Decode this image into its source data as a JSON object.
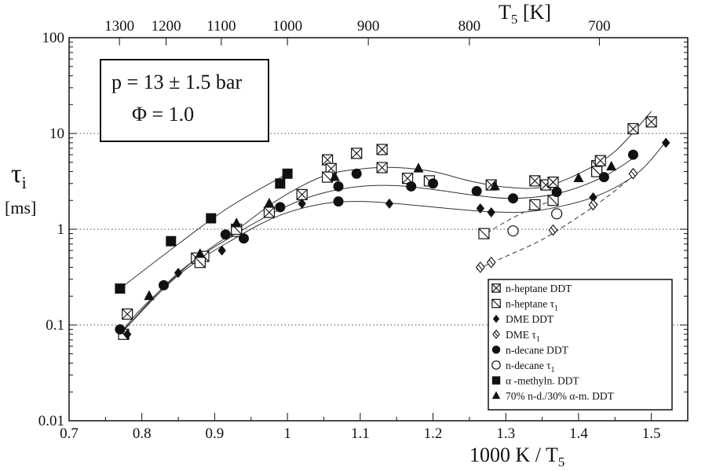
{
  "chart_data": {
    "type": "scatter",
    "xlabel": "1000 K / T",
    "xlabel_sub": "5",
    "ylabel": "τ",
    "ylabel_sub": "i",
    "ylabel_unit": "[ms]",
    "top_label": "T",
    "top_label_sub": "5",
    "top_label_unit": " [K]",
    "xlim": [
      0.7,
      1.55
    ],
    "ylim": [
      0.01,
      100
    ],
    "yscale": "log",
    "grid": "horizontal dotted at decades",
    "legend_position": "bottom-right",
    "x_ticks": [
      "0.7",
      "0.8",
      "0.9",
      "1",
      "1.1",
      "1.2",
      "1.3",
      "1.4",
      "1.5"
    ],
    "y_ticks": [
      "0.01",
      "0.1",
      "1",
      "10",
      "100"
    ],
    "top_ticks": [
      "1300",
      "1200",
      "1100",
      "1000",
      "900",
      "800",
      "700"
    ],
    "top_tick_values_K": [
      1300,
      1200,
      1100,
      1000,
      900,
      800,
      700
    ],
    "conditions": [
      "p = 13 ± 1.5 bar",
      "Φ  = 1.0"
    ],
    "series": [
      {
        "name": "n-heptane  DDT",
        "marker": "square-x",
        "points": [
          [
            0.78,
            0.13
          ],
          [
            0.875,
            0.5
          ],
          [
            0.885,
            0.52
          ],
          [
            0.93,
            0.95
          ],
          [
            0.975,
            1.5
          ],
          [
            1.02,
            2.3
          ],
          [
            1.055,
            5.3
          ],
          [
            1.06,
            4.3
          ],
          [
            1.095,
            6.2
          ],
          [
            1.13,
            6.8
          ],
          [
            1.13,
            4.4
          ],
          [
            1.165,
            3.4
          ],
          [
            1.28,
            2.9
          ],
          [
            1.34,
            3.2
          ],
          [
            1.355,
            2.9
          ],
          [
            1.365,
            3.1
          ],
          [
            1.425,
            4.6
          ],
          [
            1.43,
            5.2
          ],
          [
            1.475,
            11.2
          ],
          [
            1.5,
            13.2
          ]
        ]
      },
      {
        "name": "n-heptane  τ",
        "name_sub": "1",
        "marker": "square-slash",
        "points": [
          [
            0.775,
            0.08
          ],
          [
            0.88,
            0.45
          ],
          [
            0.93,
            1.0
          ],
          [
            1.055,
            3.5
          ],
          [
            1.195,
            3.2
          ],
          [
            1.27,
            0.9
          ],
          [
            1.34,
            1.8
          ],
          [
            1.365,
            2.0
          ],
          [
            1.425,
            4.0
          ]
        ]
      },
      {
        "name": "DME         DDT",
        "marker": "diamond-filled",
        "points": [
          [
            0.78,
            0.08
          ],
          [
            0.85,
            0.35
          ],
          [
            0.91,
            0.6
          ],
          [
            1.02,
            1.85
          ],
          [
            1.14,
            1.85
          ],
          [
            1.265,
            1.65
          ],
          [
            1.28,
            1.5
          ],
          [
            1.42,
            2.15
          ],
          [
            1.52,
            8.0
          ]
        ]
      },
      {
        "name": "DME         τ",
        "name_sub": "1",
        "marker": "diamond-slash",
        "points": [
          [
            1.265,
            0.4
          ],
          [
            1.28,
            0.45
          ],
          [
            1.365,
            0.98
          ],
          [
            1.42,
            1.8
          ],
          [
            1.475,
            3.8
          ]
        ]
      },
      {
        "name": "n-decane   DDT",
        "marker": "circle-filled",
        "points": [
          [
            0.77,
            0.09
          ],
          [
            0.83,
            0.26
          ],
          [
            0.915,
            0.88
          ],
          [
            0.94,
            0.8
          ],
          [
            0.99,
            1.7
          ],
          [
            1.07,
            1.95
          ],
          [
            1.07,
            2.8
          ],
          [
            1.095,
            3.8
          ],
          [
            1.17,
            2.8
          ],
          [
            1.2,
            3.0
          ],
          [
            1.26,
            2.5
          ],
          [
            1.31,
            2.1
          ],
          [
            1.37,
            2.45
          ],
          [
            1.435,
            3.5
          ],
          [
            1.475,
            6.0
          ]
        ]
      },
      {
        "name": "n-decane   τ",
        "name_sub": "1",
        "marker": "circle-open",
        "points": [
          [
            1.31,
            0.96
          ],
          [
            1.37,
            1.45
          ]
        ]
      },
      {
        "name": "α -methyln. DDT",
        "marker": "square-filled",
        "points": [
          [
            0.77,
            0.24
          ],
          [
            0.84,
            0.75
          ],
          [
            0.895,
            1.3
          ],
          [
            0.99,
            3.0
          ],
          [
            1.0,
            3.8
          ]
        ]
      },
      {
        "name": "70% n-d./30% α-m. DDT",
        "marker": "triangle-filled",
        "points": [
          [
            0.81,
            0.2
          ],
          [
            0.81,
            0.2
          ],
          [
            0.88,
            0.55
          ],
          [
            0.93,
            1.15
          ],
          [
            0.975,
            1.85
          ],
          [
            1.065,
            3.5
          ],
          [
            1.18,
            4.3
          ],
          [
            1.285,
            2.8
          ],
          [
            1.4,
            3.4
          ],
          [
            1.445,
            4.5
          ]
        ]
      }
    ],
    "fit_curves": [
      {
        "style": "solid",
        "points": [
          [
            0.77,
            0.24
          ],
          [
            0.85,
            0.7
          ],
          [
            0.92,
            1.7
          ],
          [
            1.0,
            3.8
          ]
        ]
      },
      {
        "style": "solid",
        "points": [
          [
            0.77,
            0.08
          ],
          [
            0.8,
            0.15
          ],
          [
            0.87,
            0.46
          ],
          [
            0.93,
            0.98
          ],
          [
            0.99,
            2.1
          ],
          [
            1.05,
            3.6
          ],
          [
            1.1,
            4.25
          ],
          [
            1.15,
            4.4
          ],
          [
            1.2,
            4.0
          ],
          [
            1.25,
            3.2
          ],
          [
            1.3,
            2.75
          ],
          [
            1.35,
            2.75
          ],
          [
            1.4,
            3.8
          ],
          [
            1.45,
            6.5
          ],
          [
            1.5,
            17
          ]
        ]
      },
      {
        "style": "solid",
        "points": [
          [
            0.77,
            0.08
          ],
          [
            0.85,
            0.35
          ],
          [
            0.93,
            0.9
          ],
          [
            1.0,
            1.75
          ],
          [
            1.05,
            2.4
          ],
          [
            1.1,
            2.8
          ],
          [
            1.15,
            2.85
          ],
          [
            1.2,
            2.6
          ],
          [
            1.26,
            2.25
          ],
          [
            1.31,
            2.1
          ],
          [
            1.37,
            2.35
          ],
          [
            1.43,
            3.4
          ],
          [
            1.475,
            5.5
          ]
        ]
      },
      {
        "style": "solid",
        "points": [
          [
            0.77,
            0.08
          ],
          [
            0.85,
            0.33
          ],
          [
            0.93,
            0.82
          ],
          [
            0.99,
            1.4
          ],
          [
            1.05,
            1.85
          ],
          [
            1.1,
            1.95
          ],
          [
            1.15,
            1.85
          ],
          [
            1.22,
            1.65
          ],
          [
            1.28,
            1.52
          ],
          [
            1.34,
            1.55
          ],
          [
            1.42,
            2.15
          ],
          [
            1.48,
            3.8
          ],
          [
            1.52,
            8.2
          ]
        ]
      },
      {
        "style": "dashed",
        "points": [
          [
            1.26,
            0.38
          ],
          [
            1.3,
            0.52
          ],
          [
            1.35,
            0.78
          ],
          [
            1.4,
            1.35
          ],
          [
            1.44,
            2.2
          ],
          [
            1.475,
            3.6
          ]
        ]
      },
      {
        "style": "dashed",
        "points": [
          [
            1.265,
            0.82
          ],
          [
            1.3,
            1.2
          ],
          [
            1.34,
            1.7
          ],
          [
            1.37,
            2.05
          ]
        ]
      }
    ]
  }
}
